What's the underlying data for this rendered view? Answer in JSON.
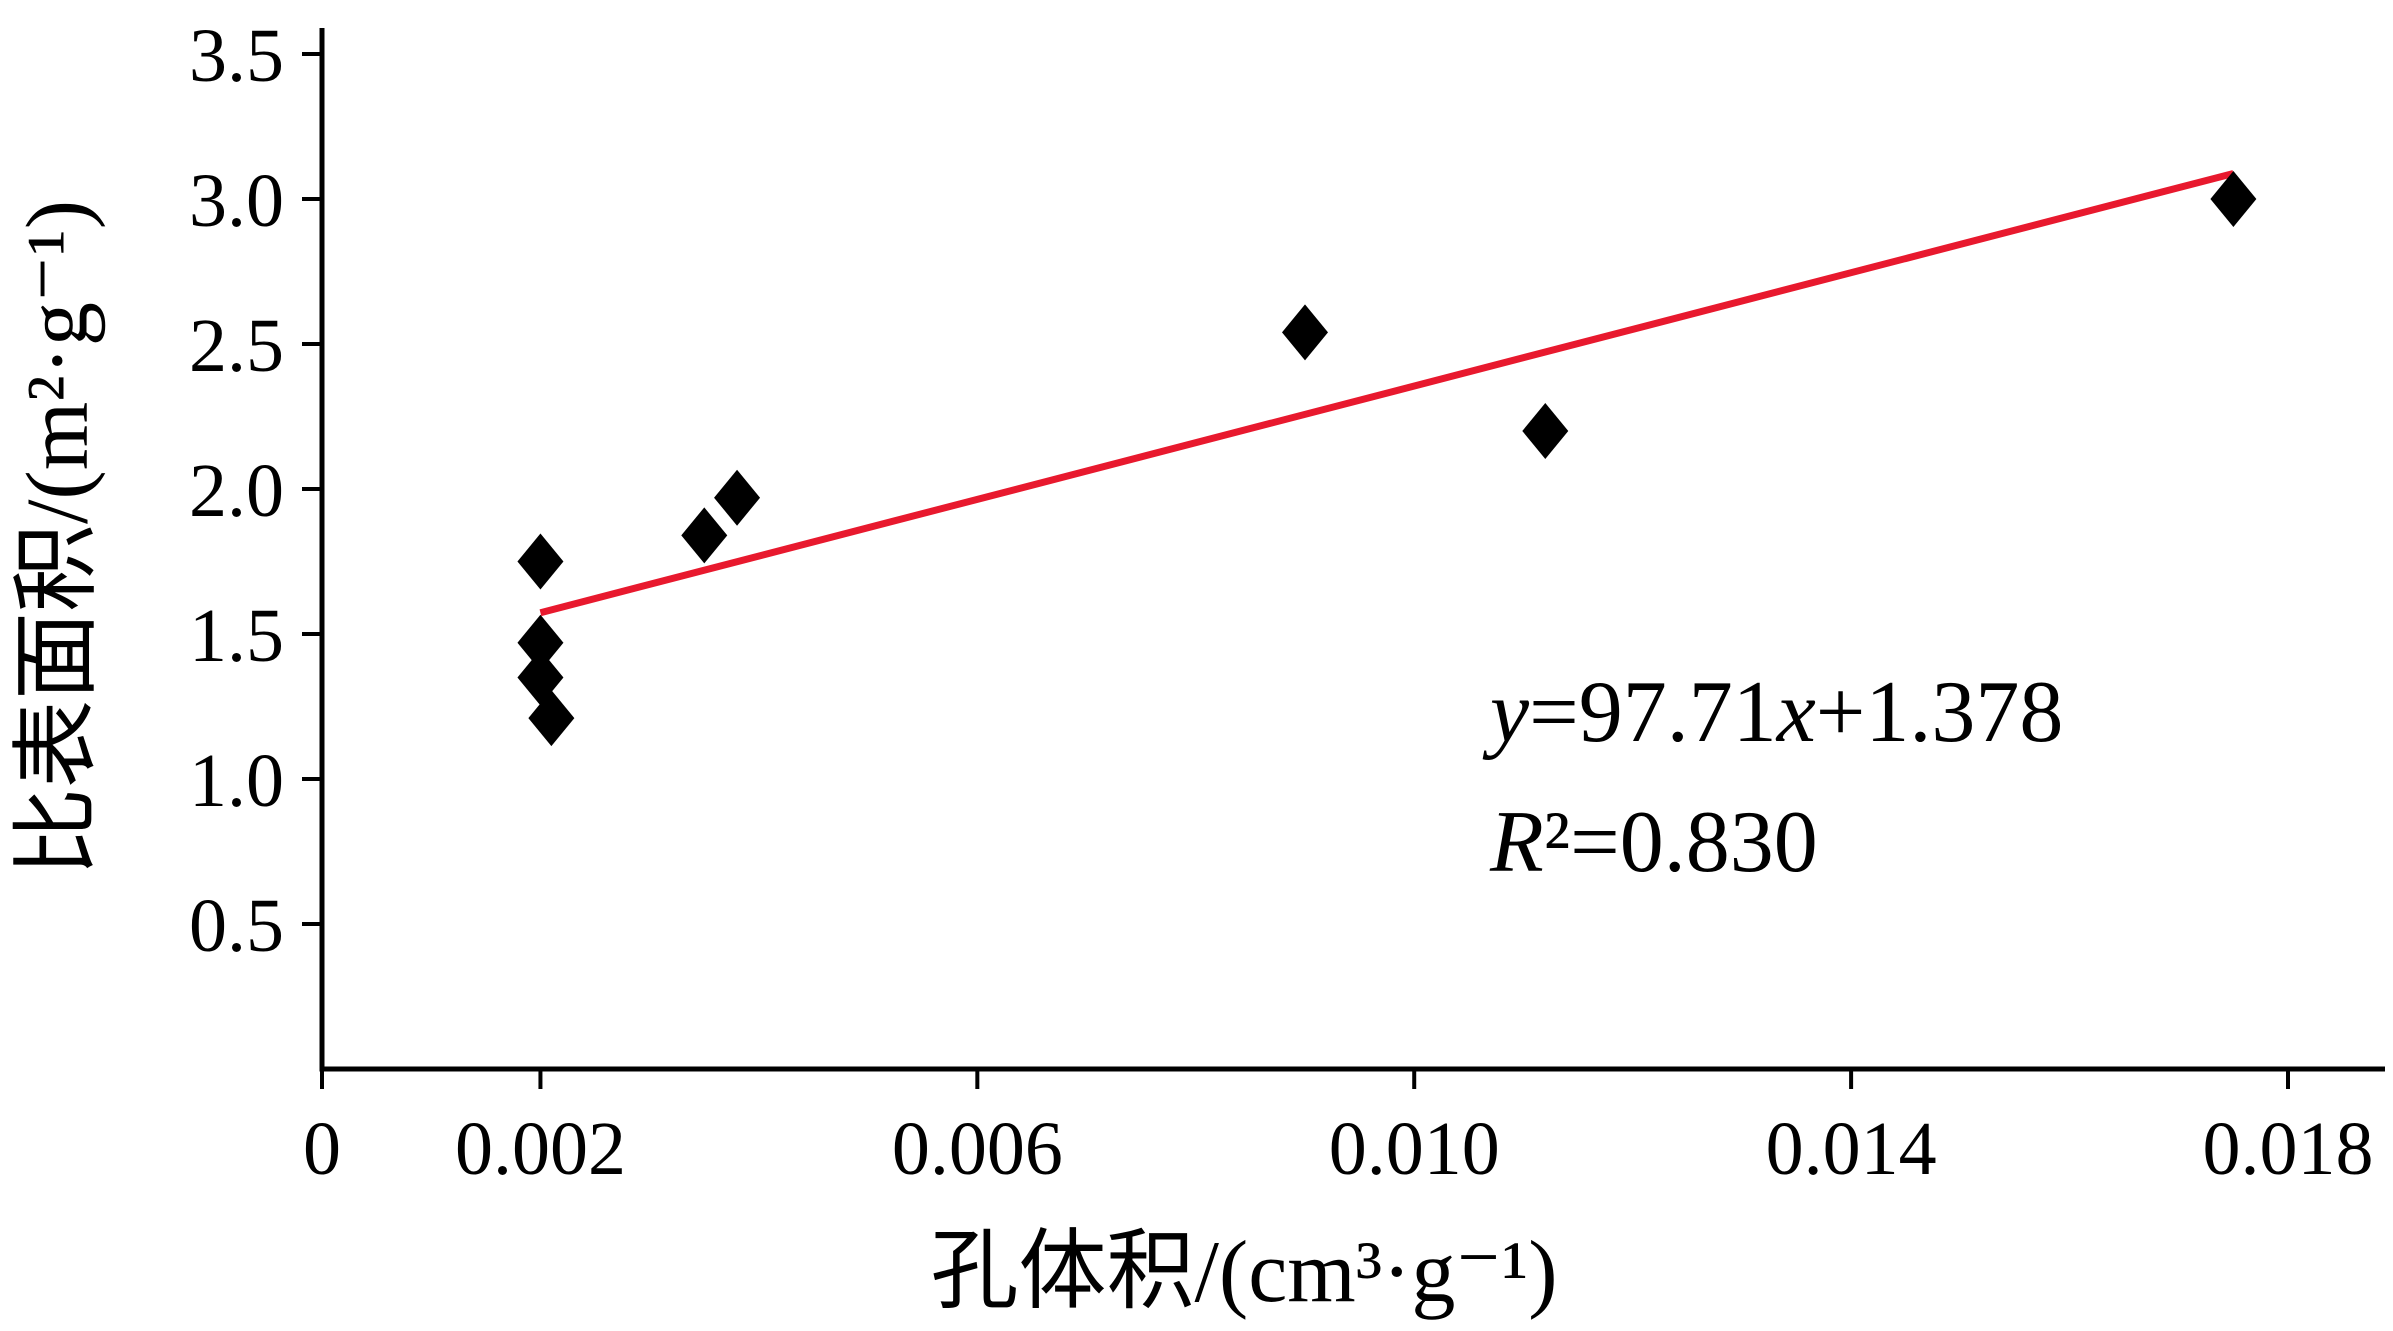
{
  "figure": {
    "background": "#ffffff",
    "axis_color": "#000000"
  },
  "chart_data": {
    "type": "scatter",
    "title": "",
    "xlabel": "孔体积/(cm³·g⁻¹)",
    "ylabel": "比表面积/(m²·g⁻¹)",
    "xlim": [
      0,
      0.018
    ],
    "ylim": [
      0,
      3.5
    ],
    "x_ticks": [
      0,
      0.002,
      0.006,
      0.01,
      0.014,
      0.018
    ],
    "x_tick_labels": [
      "0",
      "0.002",
      "0.006",
      "0.010",
      "0.014",
      "0.018"
    ],
    "y_ticks": [
      0.5,
      1.0,
      1.5,
      2.0,
      2.5,
      3.0,
      3.5
    ],
    "y_tick_labels": [
      "0.5",
      "1.0",
      "1.5",
      "2.0",
      "2.5",
      "3.0",
      "3.5"
    ],
    "grid": false,
    "legend": false,
    "marker": {
      "shape": "diamond",
      "color": "#000000"
    },
    "points": [
      {
        "x": 0.002,
        "y": 1.75
      },
      {
        "x": 0.002,
        "y": 1.47
      },
      {
        "x": 0.002,
        "y": 1.35
      },
      {
        "x": 0.0021,
        "y": 1.21
      },
      {
        "x": 0.0035,
        "y": 1.84
      },
      {
        "x": 0.0038,
        "y": 1.97
      },
      {
        "x": 0.009,
        "y": 2.54
      },
      {
        "x": 0.0112,
        "y": 2.2
      },
      {
        "x": 0.0175,
        "y": 3.0
      }
    ],
    "fit_line": {
      "equation": "y=97.71x+1.378",
      "slope": 97.71,
      "intercept": 1.378,
      "x_start": 0.002,
      "x_end": 0.0175,
      "color": "#e8192e",
      "r_squared": "R²=0.830"
    },
    "annotation": {
      "lines": [
        "y=97.71x+1.378",
        "R²=0.830"
      ]
    }
  }
}
